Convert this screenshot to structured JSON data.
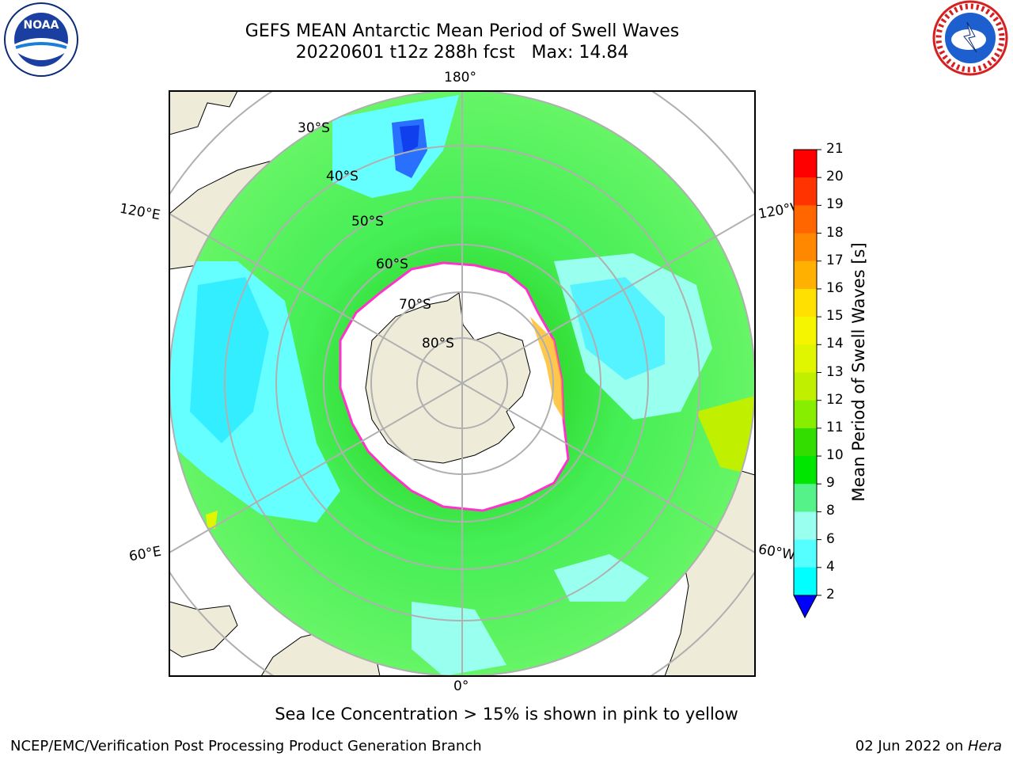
{
  "header": {
    "title_line1": "GEFS MEAN Antarctic Mean Period of Swell Waves",
    "title_line2": "20220601 t12z 288h fcst   Max: 14.84"
  },
  "logos": {
    "left": "noaa-logo",
    "left_text": "NOAA",
    "right": "national-weather-service-logo"
  },
  "map": {
    "projection": "south-polar-stereographic",
    "meridian_labels": [
      "180°",
      "120°E",
      "120°W",
      "60°E",
      "60°W",
      "0°"
    ],
    "parallel_labels": [
      "30°S",
      "40°S",
      "50°S",
      "60°S",
      "70°S",
      "80°S"
    ],
    "colors": {
      "land": "#eeecd9",
      "ice": "#ffffff",
      "ice_edge": "#ff33cc",
      "grid": "#b0b0b0"
    }
  },
  "colorbar": {
    "label": "Mean Period of Swell Waves [s]",
    "ticks": [
      "21",
      "20",
      "19",
      "18",
      "17",
      "16",
      "15",
      "14",
      "13",
      "12",
      "11",
      "10",
      "9",
      "8",
      "6",
      "4",
      "2"
    ],
    "colors_top_to_bottom": [
      "#ff0000",
      "#ff3300",
      "#ff6600",
      "#ff8800",
      "#ffb000",
      "#ffe000",
      "#f5f500",
      "#e0f500",
      "#c0f000",
      "#88ee00",
      "#33dd00",
      "#00e600",
      "#55f28a",
      "#99ffee",
      "#55ffff",
      "#00ffff",
      "#00e5ff",
      "#0077ff"
    ],
    "extend_color": "#0000ff"
  },
  "caption": "Sea Ice Concentration > 15% is shown in pink to yellow",
  "footer": {
    "left": "NCEP/EMC/Verification Post Processing Product Generation Branch",
    "right_prefix": "02 Jun 2022 on ",
    "right_host": "Hera"
  }
}
